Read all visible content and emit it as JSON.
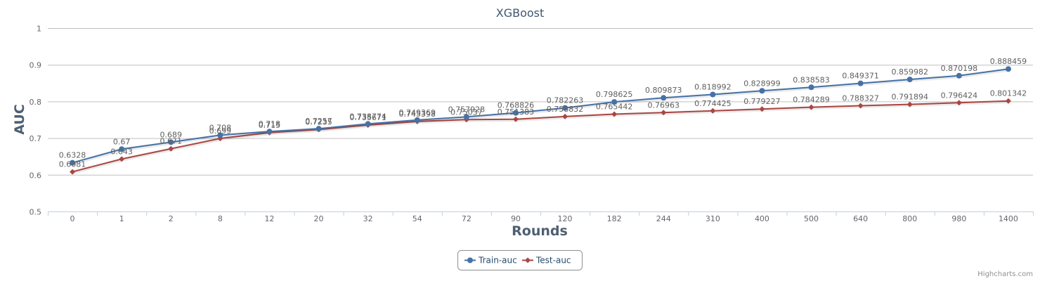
{
  "chart_data": {
    "type": "line",
    "title": "XGBoost",
    "xlabel": "Rounds",
    "ylabel": "AUC",
    "categories": [
      "0",
      "1",
      "2",
      "8",
      "12",
      "20",
      "32",
      "54",
      "72",
      "90",
      "120",
      "182",
      "244",
      "310",
      "400",
      "500",
      "640",
      "800",
      "980",
      "1400"
    ],
    "ylim": [
      0.5,
      1
    ],
    "yticks": [
      "0.5",
      "0.6",
      "0.7",
      "0.8",
      "0.9",
      "1"
    ],
    "grid": true,
    "legend_position": "bottom",
    "series": [
      {
        "name": "Train-auc",
        "color": "#4572A7",
        "marker": "circle",
        "values": [
          0.6328,
          0.67,
          0.689,
          0.708,
          0.718,
          0.7257,
          0.738774,
          0.749369,
          0.757928,
          0.768826,
          0.782263,
          0.798625,
          0.809873,
          0.818992,
          0.828999,
          0.838583,
          0.849371,
          0.859982,
          0.870198,
          0.888459
        ],
        "labels": [
          "0.6328",
          "0.67",
          "0.689",
          "0.708",
          "0.718",
          "0.7257",
          "0.738774",
          "0.749369",
          "0.757928",
          "0.768826",
          "0.782263",
          "0.798625",
          "0.809873",
          "0.818992",
          "0.828999",
          "0.838583",
          "0.849371",
          "0.859982",
          "0.870198",
          "0.888459"
        ]
      },
      {
        "name": "Test-auc",
        "color": "#AA4643",
        "marker": "diamond",
        "values": [
          0.6081,
          0.643,
          0.671,
          0.699,
          0.715,
          0.7235,
          0.735671,
          0.745398,
          0.75037,
          0.751383,
          0.758832,
          0.765442,
          0.76963,
          0.774425,
          0.779227,
          0.784289,
          0.788327,
          0.791894,
          0.796424,
          0.801342
        ],
        "labels": [
          "0.6081",
          "0.643",
          "0.671",
          "0.699",
          "0.715",
          "0.7235",
          "0.735671",
          "0.745398",
          "0.75037",
          "0.751383",
          "0.758832",
          "0.765442",
          "0.76963",
          "0.774425",
          "0.779227",
          "0.784289",
          "0.788327",
          "0.791894",
          "0.796424",
          "0.801342"
        ]
      }
    ]
  },
  "credits": "Highcharts.com"
}
